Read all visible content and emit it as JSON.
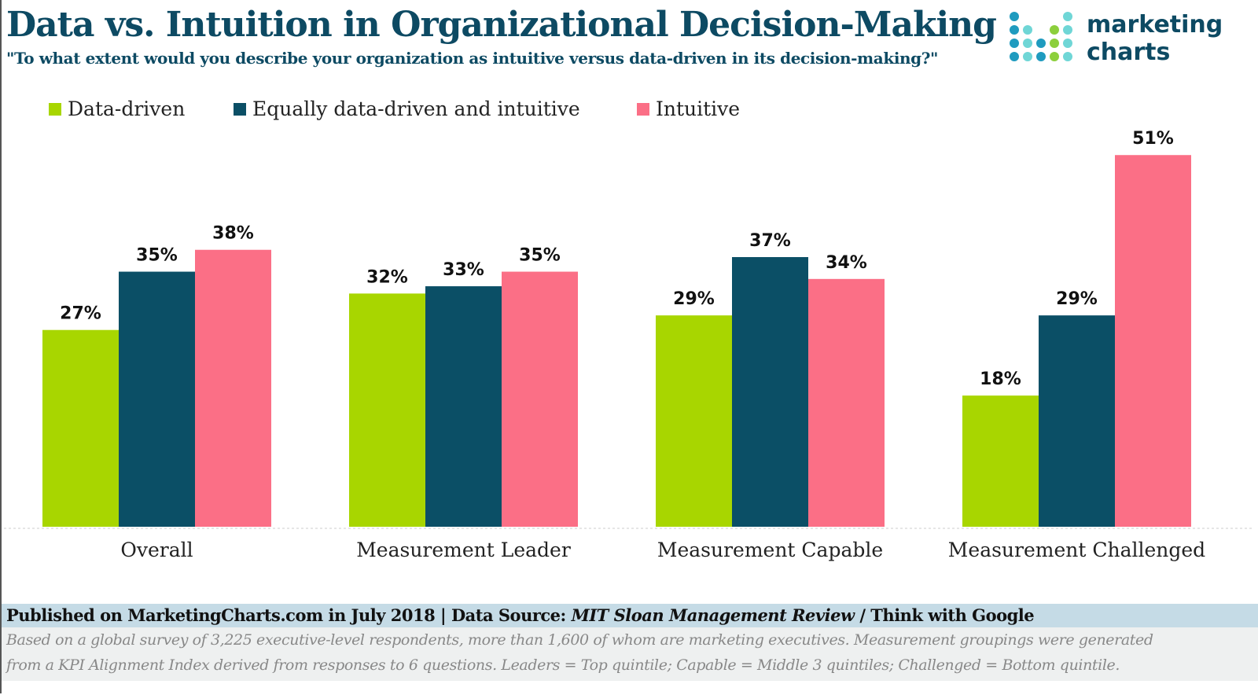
{
  "header": {
    "title": "Data vs. Intuition in Organizational Decision-Making",
    "subtitle": "\"To what extent would you describe your organization as intuitive versus data-driven in its decision-making?\""
  },
  "logo": {
    "line1": "marketing",
    "line2": "charts"
  },
  "chart_data": {
    "type": "bar",
    "categories": [
      "Overall",
      "Measurement Leader",
      "Measurement Capable",
      "Measurement Challenged"
    ],
    "series": [
      {
        "name": "Data-driven",
        "color": "#a8d600",
        "values": [
          27,
          32,
          29,
          18
        ],
        "labels": [
          "27%",
          "32%",
          "29%",
          "18%"
        ]
      },
      {
        "name": "Equally data-driven and intuitive",
        "color": "#0b4f66",
        "values": [
          35,
          33,
          37,
          29
        ],
        "labels": [
          "35%",
          "33%",
          "37%",
          "29%"
        ]
      },
      {
        "name": "Intuitive",
        "color": "#fb6f86",
        "values": [
          38,
          35,
          34,
          51
        ],
        "labels": [
          "38%",
          "35%",
          "34%",
          "51%"
        ]
      }
    ],
    "unit": "%",
    "ylim": [
      0,
      55
    ],
    "grid": false,
    "legend_position": "top-left"
  },
  "footer": {
    "published": "Published on MarketingCharts.com in July 2018 | Data Source: ",
    "source_italic": "MIT Sloan Management Review",
    "source_rest": " / Think with Google",
    "note_line1": "Based on a global survey of 3,225 executive-level respondents, more than 1,600 of whom are marketing executives. Measurement groupings were generated",
    "note_line2": "from a KPI Alignment Index derived from responses to 6 questions. Leaders = Top quintile; Capable = Middle 3 quintiles; Challenged = Bottom quintile."
  }
}
